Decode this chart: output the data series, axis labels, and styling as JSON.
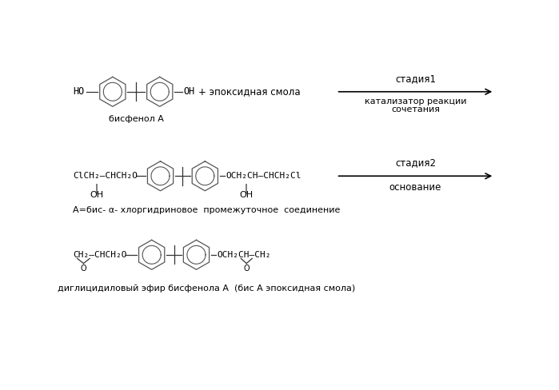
{
  "bg_color": "#ffffff",
  "text_color": "#000000",
  "fig_width": 6.99,
  "fig_height": 4.88,
  "dpi": 100,
  "reaction1_label_above": "стадия1",
  "reaction1_label_below1": "катализатор реакции",
  "reaction1_label_below2": "сочетания",
  "reaction2_label_above": "стадия2",
  "reaction2_label_below": "основание",
  "bisphenol_label": "бисфенол А",
  "chloro_intermediate_label": "А=бис- α- хлоргидриновое  промежуточное  соединение",
  "diglycidyl_label": "диглицидиловый эфир бисфенола А  (бис А эпоксидная смола)",
  "plus_epoxy": "+ эпоксидная смола",
  "font_size_main": 8.5,
  "font_size_label": 8.0,
  "font_size_reaction": 8.5
}
